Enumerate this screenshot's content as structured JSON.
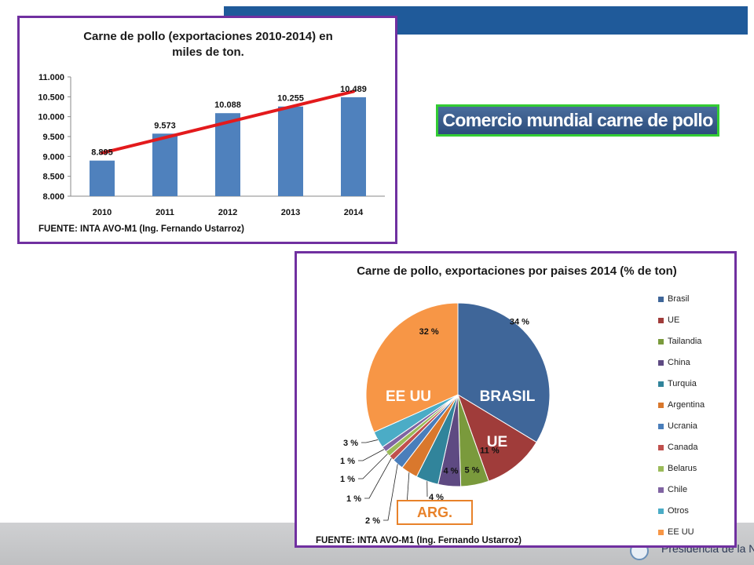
{
  "header": {
    "title": "Comercio mundial carne de pollo"
  },
  "colors": {
    "band": "#1f5a9a",
    "frame": "#7030a0",
    "header_border": "#33cc33",
    "arg": "#e8822a"
  },
  "footer": {
    "logo_text": "Presidencia de la Nación"
  },
  "arg_label": "ARG.",
  "chart_data": [
    {
      "type": "bar",
      "title": "Carne de pollo (exportaciones 2010-2014) en miles de ton.",
      "title_lines": [
        "Carne de pollo (exportaciones 2010-2014) en",
        "miles de ton."
      ],
      "categories": [
        "2010",
        "2011",
        "2012",
        "2013",
        "2014"
      ],
      "values": [
        8895,
        9573,
        10088,
        10255,
        10489
      ],
      "value_labels": [
        "8.895",
        "9.573",
        "10.088",
        "10.255",
        "10.489"
      ],
      "yticks": [
        8000,
        8500,
        9000,
        9500,
        10000,
        10500,
        11000
      ],
      "ytick_labels": [
        "8.000",
        "8.500",
        "9.000",
        "9.500",
        "10.000",
        "10.500",
        "11.000"
      ],
      "ylim": [
        8000,
        11000
      ],
      "trendline": true,
      "grid": false,
      "bar_color": "#4f81bd",
      "trend_color": "#e31a1c",
      "source": "FUENTE: INTA AVO-M1 (Ing. Fernando Ustarroz)"
    },
    {
      "type": "pie",
      "title": "Carne de pollo, exportaciones por paises 2014 (% de ton)",
      "slices": [
        {
          "name": "Brasil",
          "value": 34,
          "label": "34 %",
          "color": "#3f6699"
        },
        {
          "name": "UE",
          "value": 11,
          "label": "11 %",
          "color": "#a03c3a"
        },
        {
          "name": "Tailandia",
          "value": 5,
          "label": "5 %",
          "color": "#7a9a3c"
        },
        {
          "name": "China",
          "value": 4,
          "label": "4 %",
          "color": "#5e4a82"
        },
        {
          "name": "Turquia",
          "value": 4,
          "label": "4 %",
          "color": "#31849b"
        },
        {
          "name": "Argentina",
          "value": 3,
          "label": "3 %",
          "color": "#d9782d"
        },
        {
          "name": "Ucrania",
          "value": 2,
          "label": "2 %",
          "color": "#4a7ebb"
        },
        {
          "name": "Canada",
          "value": 1,
          "label": "1 %",
          "color": "#c0504d"
        },
        {
          "name": "Belarus",
          "value": 1,
          "label": "1 %",
          "color": "#9bbb59"
        },
        {
          "name": "Chile",
          "value": 1,
          "label": "1 %",
          "color": "#8064a2"
        },
        {
          "name": "Otros",
          "value": 3,
          "label": "3 %",
          "color": "#4bacc6"
        },
        {
          "name": "EE UU",
          "value": 32,
          "label": "32 %",
          "color": "#f79646"
        }
      ],
      "callouts": {
        "Brasil": "BRASIL",
        "UE": "UE",
        "EE UU": "EE UU"
      },
      "legend_position": "right",
      "source": "FUENTE: INTA AVO-M1 (Ing. Fernando Ustarroz)"
    }
  ]
}
